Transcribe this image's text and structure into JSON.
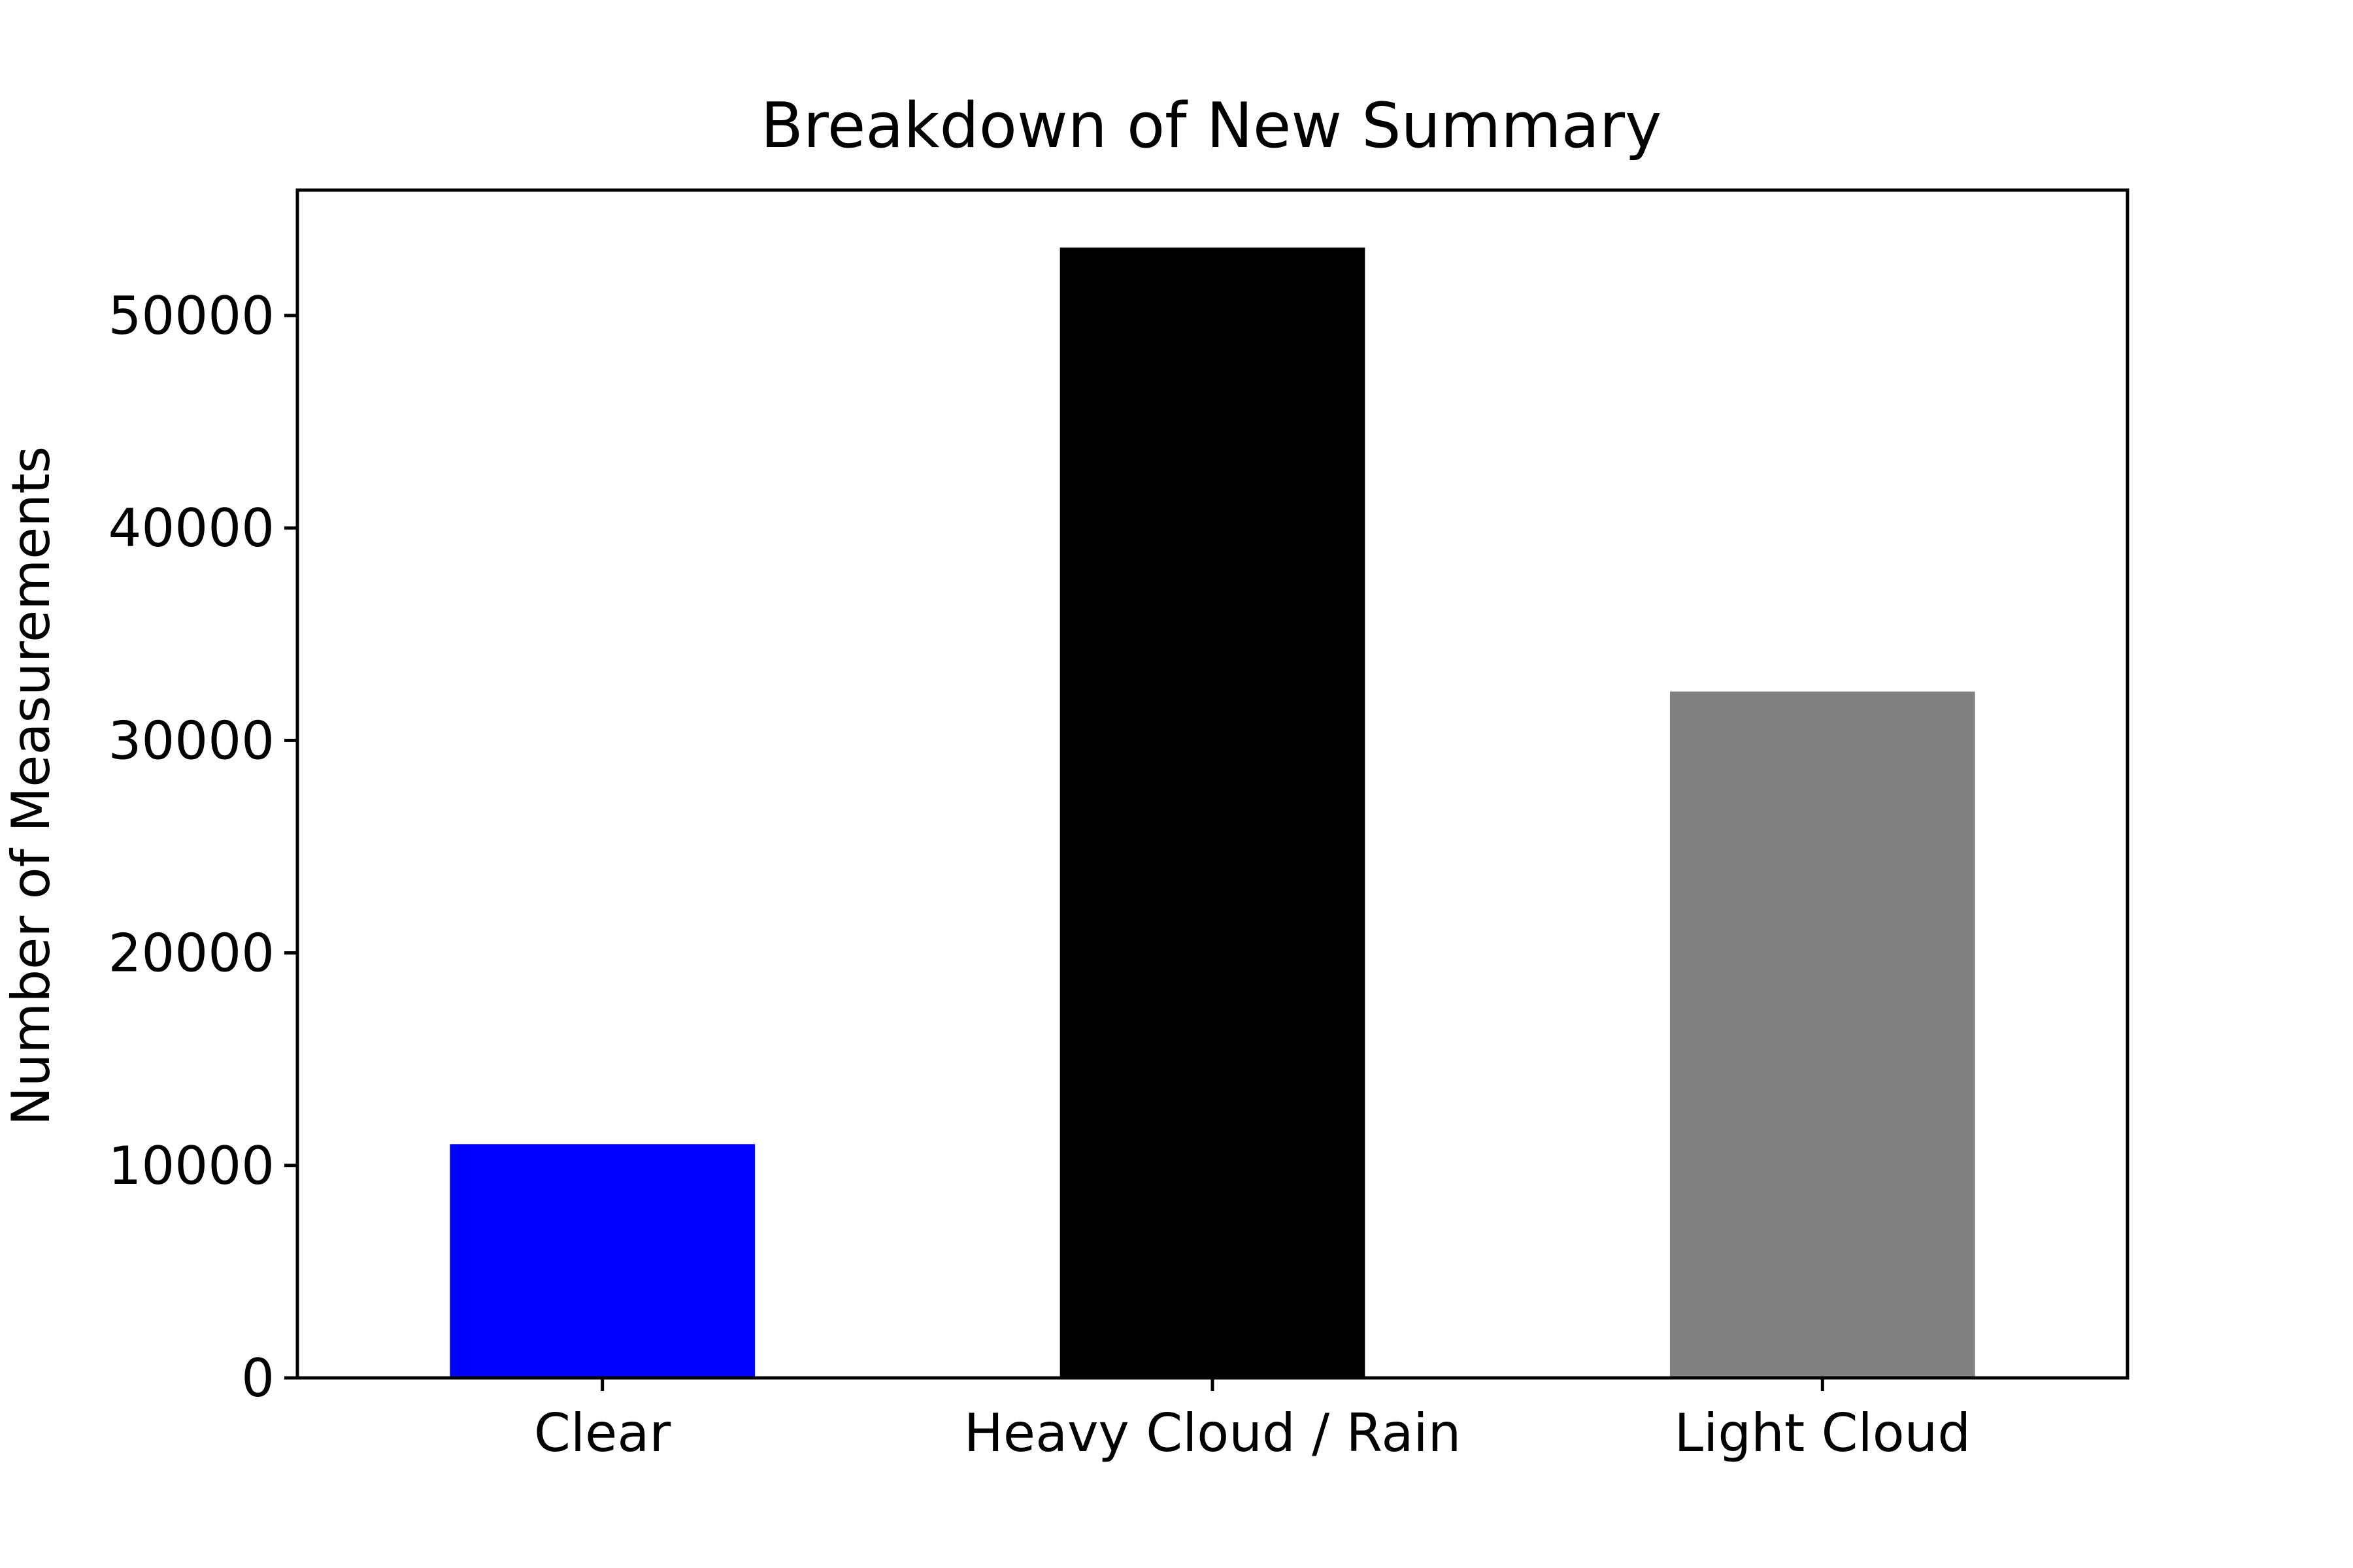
{
  "chart_data": {
    "type": "bar",
    "title": "Breakdown of New Summary",
    "xlabel": "",
    "ylabel": "Number of Measurements",
    "categories": [
      "Clear",
      "Heavy Cloud / Rain",
      "Light Cloud"
    ],
    "values": [
      11000,
      53200,
      32300
    ],
    "colors": [
      "#0000ff",
      "#000000",
      "#808080"
    ],
    "ylim": [
      0,
      55900
    ],
    "yticks": [
      0,
      10000,
      20000,
      30000,
      40000,
      50000
    ],
    "ytick_labels": [
      "0",
      "10000",
      "20000",
      "30000",
      "40000",
      "50000"
    ],
    "grid": false,
    "legend": "none"
  }
}
